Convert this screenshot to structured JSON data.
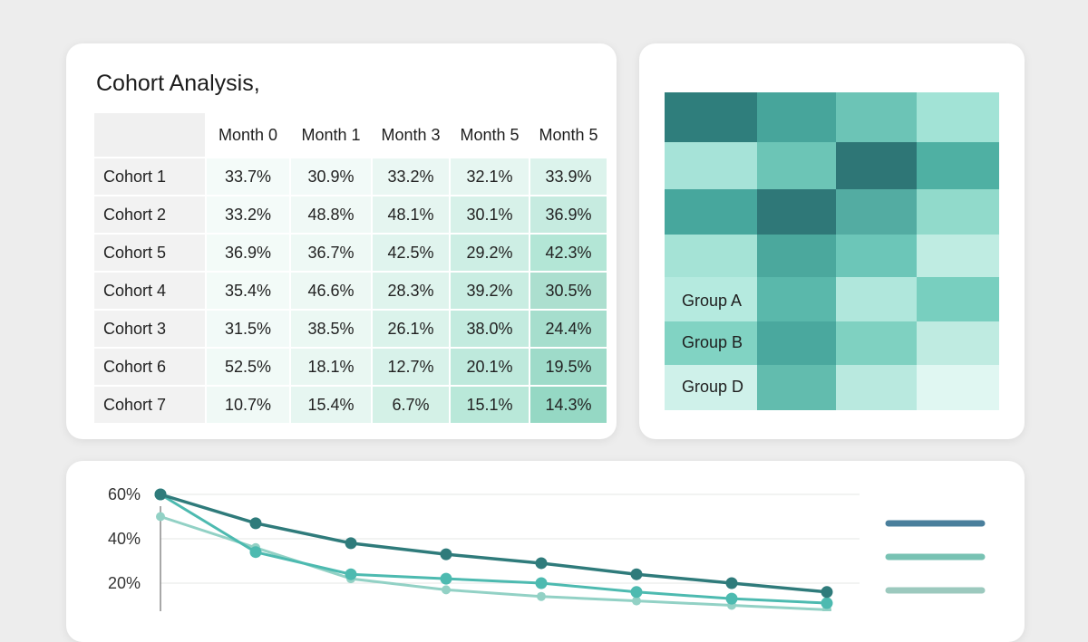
{
  "cohort_table": {
    "title": "Cohort Analysis,",
    "columns": [
      "Month 0",
      "Month 1",
      "Month 3",
      "Month 5",
      "Month 5"
    ],
    "rows": [
      {
        "label": "Cohort 1",
        "values": [
          "33.7%",
          "30.9%",
          "33.2%",
          "32.1%",
          "33.9%"
        ]
      },
      {
        "label": "Cohort 2",
        "values": [
          "33.2%",
          "48.8%",
          "48.1%",
          "30.1%",
          "36.9%"
        ]
      },
      {
        "label": "Cohort 5",
        "values": [
          "36.9%",
          "36.7%",
          "42.5%",
          "29.2%",
          "42.3%"
        ]
      },
      {
        "label": "Cohort 4",
        "values": [
          "35.4%",
          "46.6%",
          "28.3%",
          "39.2%",
          "30.5%"
        ]
      },
      {
        "label": "Cohort 3",
        "values": [
          "31.5%",
          "38.5%",
          "26.1%",
          "38.0%",
          "24.4%"
        ]
      },
      {
        "label": "Cohort 6",
        "values": [
          "52.5%",
          "18.1%",
          "12.7%",
          "20.1%",
          "19.5%"
        ]
      },
      {
        "label": "Cohort 7",
        "values": [
          "10.7%",
          "15.4%",
          "6.7%",
          "15.1%",
          "14.3%"
        ]
      }
    ]
  },
  "heatmap": {
    "labels": [
      "Group A",
      "Group B",
      "Group D"
    ],
    "cells": [
      [
        "#2f7e7c",
        "#47a59b",
        "#6cc4b6",
        "#a2e3d6"
      ],
      [
        "#a6e3d8",
        "#6cc5b6",
        "#2e7676",
        "#4fb0a3"
      ],
      [
        "#47a79d",
        "#2f7878",
        "#53aca2",
        "#91dacb"
      ],
      [
        "#a5e3d6",
        "#4ba89d",
        "#6cc6b8",
        "#bfece2"
      ],
      [
        "#b5eadf",
        "#5ab8ab",
        "#b0e7dc",
        "#78cfbf"
      ],
      [
        "#81d3c3",
        "#4aa89e",
        "#7fd1c1",
        "#bfebe1"
      ],
      [
        "#cff1ea",
        "#62bcae",
        "#b9e9df",
        "#e0f7f2"
      ]
    ]
  },
  "chart_data": {
    "type": "line",
    "title": "",
    "xlabel": "",
    "ylabel": "",
    "ylim": [
      0,
      60
    ],
    "y_ticks": [
      "60%",
      "40%",
      "20%"
    ],
    "y_tick_values": [
      60,
      40,
      20
    ],
    "x": [
      0,
      1,
      2,
      3,
      4,
      5,
      6,
      7
    ],
    "grid": true,
    "legend_position": "right",
    "series": [
      {
        "color": "#2f7b7b",
        "values": [
          60,
          47,
          38,
          33,
          29,
          24,
          20,
          16
        ]
      },
      {
        "color": "#4dbab0",
        "values": [
          60,
          34,
          24,
          22,
          20,
          16,
          13,
          11
        ]
      },
      {
        "color": "#92d1c5",
        "values": [
          50,
          36,
          22,
          17,
          14,
          12,
          10,
          8
        ]
      }
    ],
    "legend_colors": [
      "#4a7f9c",
      "#78c2b3",
      "#9cc9be"
    ]
  }
}
